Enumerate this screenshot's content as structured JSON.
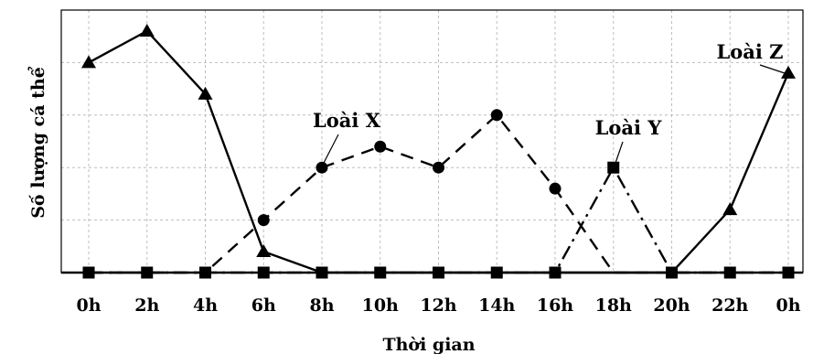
{
  "chart_data": {
    "type": "line",
    "title": "",
    "xlabel": "Thời gian",
    "ylabel": "Số lượng cá thể",
    "categories": [
      "0h",
      "2h",
      "4h",
      "6h",
      "8h",
      "10h",
      "12h",
      "14h",
      "16h",
      "18h",
      "20h",
      "22h",
      "0h"
    ],
    "ylim": [
      0,
      10
    ],
    "grid": true,
    "series": [
      {
        "name": "Loài X",
        "marker": "circle",
        "dash": "dashed",
        "values": [
          0,
          0,
          0,
          2,
          4,
          4.8,
          4,
          6,
          3.2,
          0,
          0,
          0,
          0
        ]
      },
      {
        "name": "Loài Y",
        "marker": "square",
        "dash": "dashdot",
        "values": [
          0,
          0,
          0,
          0,
          0,
          0,
          0,
          0,
          0,
          4,
          0,
          0,
          0
        ]
      },
      {
        "name": "Loài Z",
        "marker": "triangle",
        "dash": "solid",
        "values": [
          8,
          9.2,
          6.8,
          0.8,
          0,
          0,
          0,
          0,
          0,
          0,
          0,
          2.4,
          7.6
        ]
      }
    ]
  }
}
